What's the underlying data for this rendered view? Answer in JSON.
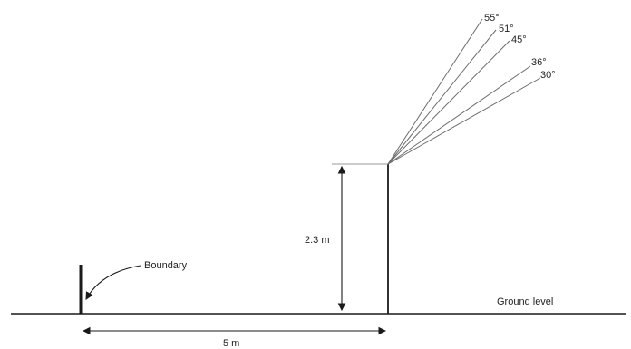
{
  "labels": {
    "boundary": "Boundary",
    "height": "2.3 m",
    "distance": "5 m",
    "ground": "Ground level"
  },
  "angles": [
    {
      "label": "55°",
      "deg": 55
    },
    {
      "label": "51°",
      "deg": 51
    },
    {
      "label": "45°",
      "deg": 45
    },
    {
      "label": "36°",
      "deg": 36
    },
    {
      "label": "30°",
      "deg": 30
    }
  ],
  "colors": {
    "line": "#1a1a1a",
    "ray": "#6b6b6b"
  }
}
